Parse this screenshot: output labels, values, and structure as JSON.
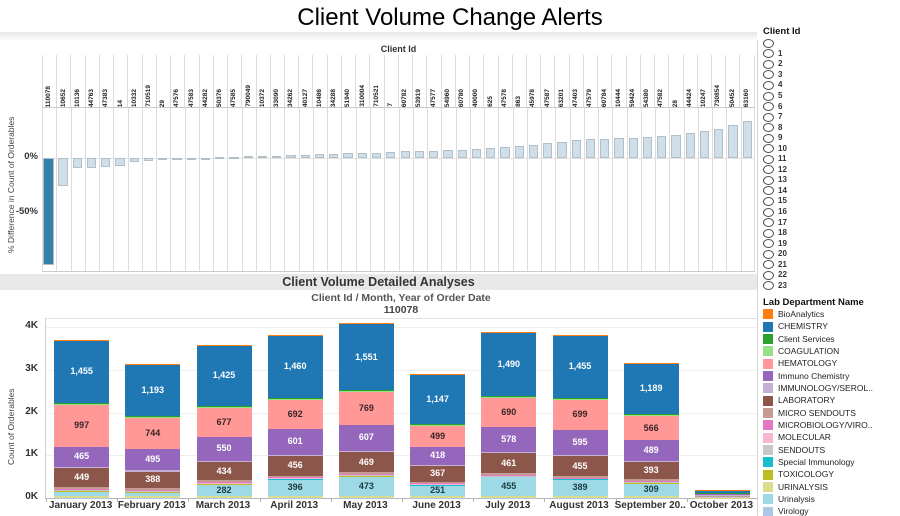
{
  "header": {
    "title": "Client Volume Change Alerts"
  },
  "top_chart": {
    "column_header": "Client Id",
    "y_axis_title": "% Difference in Count of Orderables",
    "ticks": [
      "0%",
      "-50%"
    ]
  },
  "client_filter": {
    "header": "Client Id",
    "options": [
      "",
      "1",
      "2",
      "3",
      "4",
      "5",
      "6",
      "7",
      "8",
      "9",
      "10",
      "11",
      "12",
      "13",
      "14",
      "15",
      "16",
      "17",
      "18",
      "19",
      "20",
      "21",
      "22",
      "23"
    ]
  },
  "bottom_chart": {
    "band_title": "Client Volume Detailed Analyses",
    "subtitle": "Client Id  /  Month, Year of Order Date",
    "client_id": "110078",
    "y_axis_title": "Count of Orderables",
    "y_ticks": [
      {
        "label": "0K",
        "value": 0
      },
      {
        "label": "1K",
        "value": 1000
      },
      {
        "label": "2K",
        "value": 2000
      },
      {
        "label": "3K",
        "value": 3000
      },
      {
        "label": "4K",
        "value": 4000
      }
    ]
  },
  "legend": {
    "header": "Lab Department Name",
    "items": [
      {
        "label": "BioAnalytics",
        "color": "#FF7F0E"
      },
      {
        "label": "CHEMISTRY",
        "color": "#1F77B4"
      },
      {
        "label": "Client Services",
        "color": "#2CA02C"
      },
      {
        "label": "COAGULATION",
        "color": "#98DF8A"
      },
      {
        "label": "HEMATOLOGY",
        "color": "#FF9896"
      },
      {
        "label": "Immuno Chemistry",
        "color": "#9467BD"
      },
      {
        "label": "IMMUNOLOGY/SEROL..",
        "color": "#C5B0D5"
      },
      {
        "label": "LABORATORY",
        "color": "#8C564B"
      },
      {
        "label": "MICRO SENDOUTS",
        "color": "#C49C94"
      },
      {
        "label": "MICROBIOLOGY/VIRO..",
        "color": "#E377C2"
      },
      {
        "label": "MOLECULAR",
        "color": "#F7B6D2"
      },
      {
        "label": "SENDOUTS",
        "color": "#C7C7C7"
      },
      {
        "label": "Special Immunology",
        "color": "#17BECF"
      },
      {
        "label": "TOXICOLOGY",
        "color": "#BCBD22"
      },
      {
        "label": "URINALYSIS",
        "color": "#DBDB8D"
      },
      {
        "label": "Urinalysis",
        "color": "#9EDAE5"
      },
      {
        "label": "Virology",
        "color": "#AEC7E8"
      }
    ]
  },
  "chart_data": [
    {
      "type": "bar",
      "title": "Client Volume Change Alerts",
      "xlabel": "Client Id",
      "ylabel": "% Difference in Count of Orderables",
      "unit": "%",
      "ylim": [
        -100,
        45
      ],
      "grid": "column-bands",
      "bar_color": "#cfdfe9",
      "bar_border": "#b3bfc7",
      "highlight_color": "#3580a8",
      "highlight_index": 0,
      "highlight_category": "110078",
      "categories": [
        "110078",
        "10652",
        "10136",
        "44763",
        "47383",
        "14",
        "10332",
        "710519",
        "29",
        "47576",
        "47583",
        "44282",
        "50376",
        "47585",
        "790049",
        "10372",
        "33090",
        "34262",
        "40127",
        "10486",
        "34288",
        "51940",
        "310004",
        "710521",
        "7",
        "60782",
        "53919",
        "47577",
        "54960",
        "60780",
        "40000",
        "625",
        "47578",
        "863",
        "45978",
        "47587",
        "63201",
        "47403",
        "47579",
        "60784",
        "10444",
        "59424",
        "54380",
        "47582",
        "28",
        "44424",
        "10247",
        "730854",
        "50452",
        "63160"
      ],
      "values": [
        -97,
        -25,
        -9,
        -9,
        -8,
        -7,
        -4,
        -2.5,
        -1.5,
        -1,
        -0.8,
        -0.5,
        0.5,
        1,
        1.5,
        1.5,
        2,
        2.5,
        3,
        3.5,
        4,
        4.5,
        5,
        5,
        5.5,
        6,
        6,
        6.5,
        7,
        7.5,
        8,
        9,
        10,
        11,
        12,
        14,
        15,
        16,
        17,
        17,
        18,
        18,
        19,
        20,
        21,
        23,
        25,
        26,
        30,
        34
      ]
    },
    {
      "type": "stacked-bar",
      "title": "Client Volume Detailed Analyses",
      "subtitle": "Client Id  /  Month, Year of Order Date",
      "client_id": "110078",
      "ylabel": "Count of Orderables",
      "ylim": [
        0,
        4200
      ],
      "legend_position": "right",
      "label_min_value": 240,
      "categories": [
        "January 2013",
        "February 2013",
        "March 2013",
        "April 2013",
        "May 2013",
        "June 2013",
        "July 2013",
        "August 2013",
        "September 20..",
        "October 2013"
      ],
      "series": [
        {
          "name": "Virology",
          "color": "#AEC7E8",
          "label_color": "#000000",
          "values": [
            10,
            10,
            10,
            10,
            10,
            10,
            10,
            10,
            10,
            5
          ]
        },
        {
          "name": "URINALYSIS",
          "color": "#DBDB8D",
          "label_color": "#000000",
          "values": [
            30,
            30,
            30,
            30,
            30,
            30,
            30,
            30,
            30,
            5
          ]
        },
        {
          "name": "Urinalysis",
          "color": "#9EDAE5",
          "label_color": "#1d3b41",
          "values": [
            120,
            100,
            282,
            396,
            473,
            251,
            455,
            389,
            309,
            10
          ]
        },
        {
          "name": "TOXICOLOGY",
          "color": "#BCBD22",
          "label_color": "#000000",
          "values": [
            10,
            10,
            10,
            10,
            10,
            10,
            10,
            10,
            10,
            3
          ]
        },
        {
          "name": "Special Immunology",
          "color": "#17BECF",
          "label_color": "#000000",
          "values": [
            10,
            10,
            10,
            10,
            10,
            10,
            10,
            10,
            10,
            5
          ]
        },
        {
          "name": "SENDOUTS",
          "color": "#C7C7C7",
          "label_color": "#000000",
          "values": [
            10,
            10,
            10,
            10,
            10,
            10,
            10,
            10,
            10,
            5
          ]
        },
        {
          "name": "MOLECULAR",
          "color": "#F7B6D2",
          "label_color": "#000000",
          "values": [
            10,
            10,
            10,
            10,
            10,
            10,
            10,
            10,
            10,
            8
          ]
        },
        {
          "name": "MICROBIOLOGY/VIRO..",
          "color": "#E377C2",
          "label_color": "#000000",
          "values": [
            10,
            10,
            10,
            10,
            10,
            10,
            10,
            10,
            10,
            8
          ]
        },
        {
          "name": "MICRO SENDOUTS",
          "color": "#C49C94",
          "label_color": "#000000",
          "values": [
            40,
            40,
            40,
            40,
            40,
            40,
            40,
            40,
            40,
            8
          ]
        },
        {
          "name": "LABORATORY",
          "color": "#8C564B",
          "label_color": "#ffffff",
          "values": [
            449,
            388,
            434,
            456,
            469,
            367,
            461,
            455,
            393,
            15
          ]
        },
        {
          "name": "IMMUNOLOGY/SEROL..",
          "color": "#C5B0D5",
          "label_color": "#000000",
          "values": [
            30,
            30,
            30,
            30,
            30,
            30,
            30,
            30,
            30,
            5
          ]
        },
        {
          "name": "Immuno Chemistry",
          "color": "#9467BD",
          "label_color": "#ffffff",
          "values": [
            465,
            495,
            550,
            601,
            607,
            418,
            578,
            595,
            489,
            20
          ]
        },
        {
          "name": "HEMATOLOGY",
          "color": "#FF9896",
          "label_color": "#3a2525",
          "values": [
            997,
            744,
            677,
            692,
            769,
            499,
            690,
            699,
            566,
            25
          ]
        },
        {
          "name": "COAGULATION",
          "color": "#98DF8A",
          "label_color": "#000000",
          "values": [
            20,
            20,
            20,
            20,
            20,
            20,
            20,
            20,
            20,
            3
          ]
        },
        {
          "name": "Client Services",
          "color": "#2CA02C",
          "label_color": "#ffffff",
          "values": [
            20,
            20,
            20,
            20,
            20,
            20,
            20,
            20,
            20,
            3
          ]
        },
        {
          "name": "CHEMISTRY",
          "color": "#1F77B4",
          "label_color": "#ffffff",
          "values": [
            1455,
            1193,
            1425,
            1460,
            1551,
            1147,
            1490,
            1455,
            1189,
            60
          ]
        },
        {
          "name": "BioAnalytics",
          "color": "#FF7F0E",
          "label_color": "#000000",
          "values": [
            15,
            15,
            15,
            15,
            15,
            15,
            15,
            15,
            15,
            3
          ]
        }
      ]
    }
  ]
}
